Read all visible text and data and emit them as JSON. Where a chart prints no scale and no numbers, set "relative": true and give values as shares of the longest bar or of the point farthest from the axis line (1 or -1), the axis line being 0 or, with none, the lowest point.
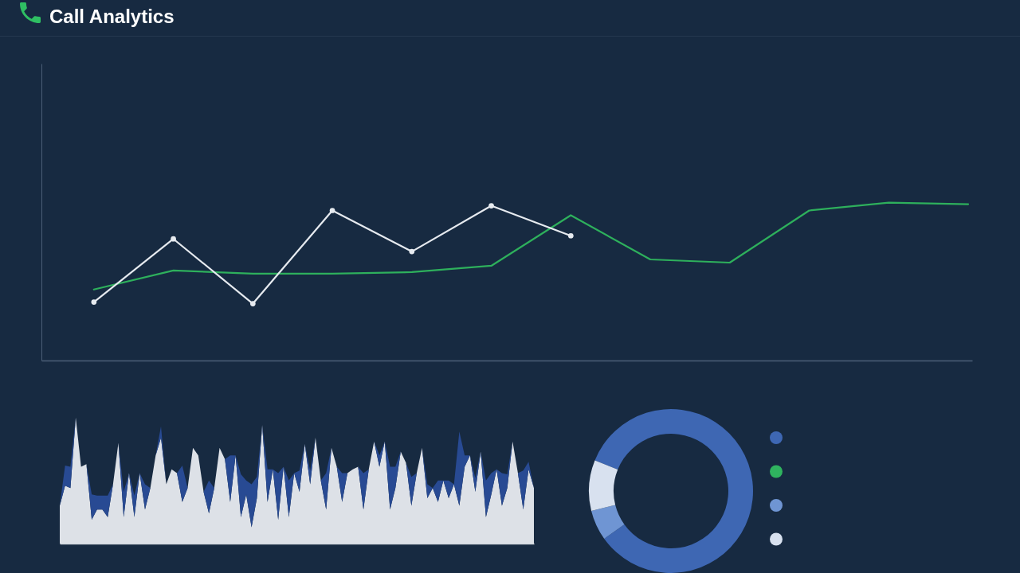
{
  "chart_data": [
    {
      "type": "line",
      "title": "Call Analytics",
      "relative": true,
      "categories": [
        null,
        null,
        null,
        null,
        null,
        null,
        null,
        null,
        null,
        null,
        null,
        null
      ],
      "series": [
        {
          "color": "#2eb05c",
          "marker": "none",
          "values": [
            0.45,
            0.57,
            0.55,
            0.55,
            0.56,
            0.6,
            0.92,
            0.64,
            0.62,
            0.95,
            1.0,
            0.99
          ]
        },
        {
          "color": "#e6eaef",
          "marker": "circle",
          "values": [
            0.37,
            0.77,
            0.36,
            0.95,
            0.69,
            0.98,
            0.79,
            null,
            null,
            null,
            null,
            null
          ]
        }
      ]
    },
    {
      "type": "area",
      "relative": true,
      "stacked": true,
      "categories": [
        null,
        null,
        null,
        null,
        null,
        null,
        null,
        null,
        null,
        null,
        null,
        null,
        null,
        null,
        null,
        null,
        null,
        null,
        null,
        null,
        null,
        null,
        null,
        null,
        null,
        null,
        null,
        null,
        null,
        null,
        null,
        null,
        null,
        null,
        null,
        null,
        null,
        null,
        null,
        null,
        null,
        null,
        null,
        null,
        null,
        null,
        null,
        null,
        null,
        null,
        null,
        null,
        null,
        null,
        null,
        null,
        null,
        null,
        null,
        null,
        null,
        null,
        null,
        null,
        null,
        null,
        null,
        null,
        null,
        null,
        null,
        null,
        null,
        null,
        null,
        null,
        null,
        null,
        null,
        null,
        null,
        null,
        null,
        null,
        null,
        null,
        null,
        null,
        null,
        null
      ],
      "series": [
        {
          "color": "#dde1e7",
          "values": [
            0.3,
            0.46,
            0.44,
            1.0,
            0.61,
            0.63,
            0.19,
            0.27,
            0.27,
            0.21,
            0.47,
            0.8,
            0.21,
            0.56,
            0.21,
            0.56,
            0.27,
            0.44,
            0.7,
            0.84,
            0.47,
            0.59,
            0.56,
            0.33,
            0.44,
            0.76,
            0.7,
            0.41,
            0.24,
            0.44,
            0.76,
            0.67,
            0.33,
            0.7,
            0.21,
            0.39,
            0.13,
            0.36,
            0.94,
            0.33,
            0.59,
            0.19,
            0.61,
            0.21,
            0.56,
            0.41,
            0.79,
            0.47,
            0.84,
            0.5,
            0.27,
            0.76,
            0.61,
            0.33,
            0.56,
            0.59,
            0.61,
            0.27,
            0.59,
            0.81,
            0.61,
            0.81,
            0.27,
            0.44,
            0.73,
            0.64,
            0.3,
            0.56,
            0.76,
            0.36,
            0.44,
            0.33,
            0.5,
            0.36,
            0.47,
            0.3,
            0.61,
            0.7,
            0.41,
            0.73,
            0.21,
            0.39,
            0.59,
            0.3,
            0.44,
            0.81,
            0.56,
            0.27,
            0.59,
            0.44
          ]
        },
        {
          "color": "#284a93",
          "values": [
            0,
            0.16,
            0.17,
            0,
            0,
            0,
            0.2,
            0.11,
            0.11,
            0.17,
            0,
            0,
            0.2,
            0,
            0.17,
            0,
            0.2,
            0,
            0,
            0.09,
            0,
            0,
            0,
            0.29,
            0,
            0,
            0,
            0,
            0.26,
            0,
            0,
            0,
            0.37,
            0,
            0.34,
            0.11,
            0.34,
            0.17,
            0,
            0.26,
            0,
            0.37,
            0,
            0.29,
            0,
            0.17,
            0,
            0.11,
            0,
            0,
            0.29,
            0,
            0,
            0.23,
            0,
            0,
            0,
            0.29,
            0,
            0,
            0.09,
            0,
            0.34,
            0.17,
            0,
            0,
            0.23,
            0,
            0,
            0.11,
            0,
            0.17,
            0,
            0.14,
            0,
            0.59,
            0.09,
            0,
            0.11,
            0,
            0.29,
            0.17,
            0,
            0.26,
            0.11,
            0,
            0,
            0.31,
            0.06,
            0
          ]
        }
      ]
    },
    {
      "type": "donut",
      "categories": [
        null,
        null,
        null,
        null
      ],
      "values": [
        84,
        0,
        6,
        10
      ],
      "colors": [
        "#3e67b3",
        "#2fb35f",
        "#6f95d3",
        "#d8e1ef"
      ]
    }
  ]
}
